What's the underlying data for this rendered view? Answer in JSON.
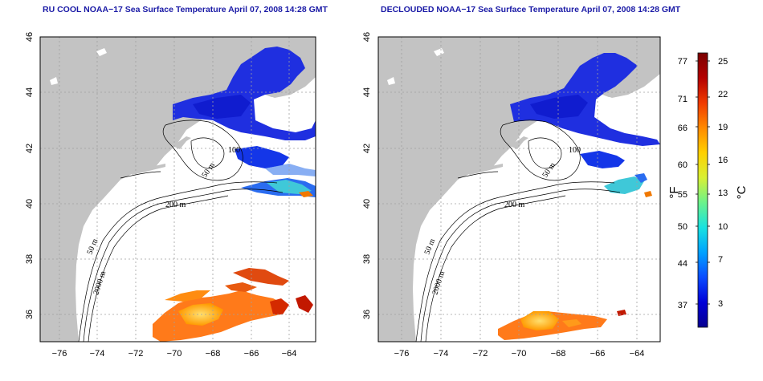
{
  "panels": [
    {
      "title": "RU COOL NOAA−17 Sea Surface Temperature April 07, 2008 14:28 GMT",
      "variant": "raw"
    },
    {
      "title": "DECLOUDED NOAA−17 Sea Surface Temperature April 07, 2008 14:28 GMT",
      "variant": "declouded"
    }
  ],
  "axes": {
    "lon_ticks": [
      "−76",
      "−74",
      "−72",
      "−70",
      "−68",
      "−66",
      "−64"
    ],
    "lat_ticks": [
      "46",
      "44",
      "42",
      "40",
      "38",
      "36"
    ],
    "lon_values": [
      -76,
      -74,
      -72,
      -70,
      -68,
      -66,
      -64
    ],
    "lat_values": [
      46,
      44,
      42,
      40,
      38,
      36
    ],
    "lon_range": [
      -77.2,
      -62.8
    ],
    "lat_range": [
      35.0,
      46.0
    ]
  },
  "contours": {
    "labels": [
      "100",
      "50 m",
      "200 m",
      "50 m",
      "2000 m"
    ]
  },
  "colorbar": {
    "fahrenheit_ticks": [
      "77",
      "71",
      "66",
      "60",
      "55",
      "50",
      "44",
      "37"
    ],
    "celsius_ticks": [
      "25",
      "22",
      "19",
      "16",
      "13",
      "10",
      "7",
      "3"
    ],
    "f_unit": "°F",
    "c_unit": "°C",
    "range_c": [
      0,
      26
    ],
    "colors": [
      "#08008f",
      "#0000d8",
      "#0a4cff",
      "#00a2ff",
      "#18e2e0",
      "#6cf28a",
      "#d8f034",
      "#ffd000",
      "#ff8a00",
      "#f03a00",
      "#b40000",
      "#7a0000"
    ]
  },
  "colors": {
    "land": "#c3c3c3",
    "ocean": "#ffffff",
    "grid": "#a0a0a0",
    "title": "#1a1aa6"
  }
}
